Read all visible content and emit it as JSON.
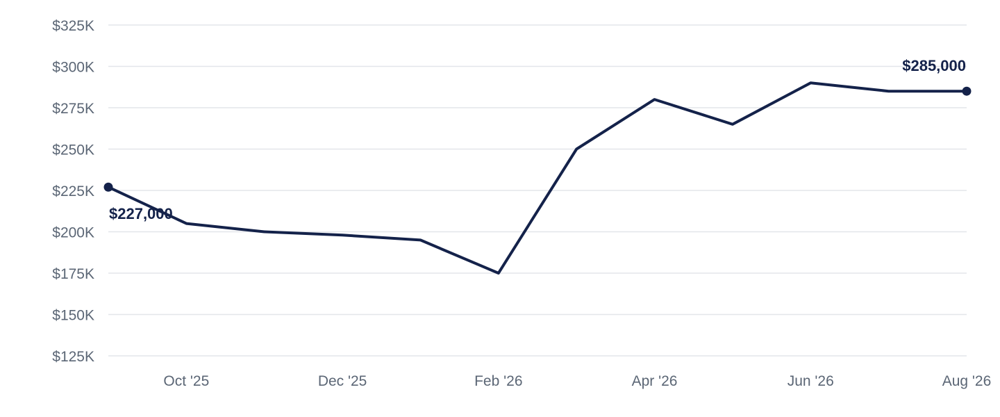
{
  "chart_data": {
    "type": "line",
    "title": "",
    "xlabel": "",
    "ylabel": "",
    "grid": true,
    "legend": "none",
    "x": [
      "Sep '25",
      "Oct '25",
      "Nov '25",
      "Dec '25",
      "Jan '26",
      "Feb '26",
      "Mar '26",
      "Apr '26",
      "May '26",
      "Jun '26",
      "Jul '26",
      "Aug '26"
    ],
    "x_tick_labels": [
      "Oct '25",
      "Dec '25",
      "Feb '26",
      "Apr '26",
      "Jun '26",
      "Aug '26"
    ],
    "series": [
      {
        "values": [
          227000,
          205000,
          200000,
          198000,
          195000,
          175000,
          250000,
          280000,
          265000,
          290000,
          285000,
          285000
        ]
      }
    ],
    "ylim": [
      125000,
      325000
    ],
    "y_ticks": [
      125000,
      150000,
      175000,
      200000,
      225000,
      250000,
      275000,
      300000,
      325000
    ],
    "y_tick_labels": [
      "$125K",
      "$150K",
      "$175K",
      "$200K",
      "$225K",
      "$250K",
      "$275K",
      "$300K",
      "$325K"
    ],
    "annotations": [
      {
        "label": "$227,000",
        "at": "Sep '25"
      },
      {
        "label": "$285,000",
        "at": "Aug '26"
      }
    ],
    "colors": {
      "line": "#14224a",
      "grid": "#e3e6ea",
      "tick_text": "#5b6675",
      "annotation_text": "#14224a"
    }
  }
}
